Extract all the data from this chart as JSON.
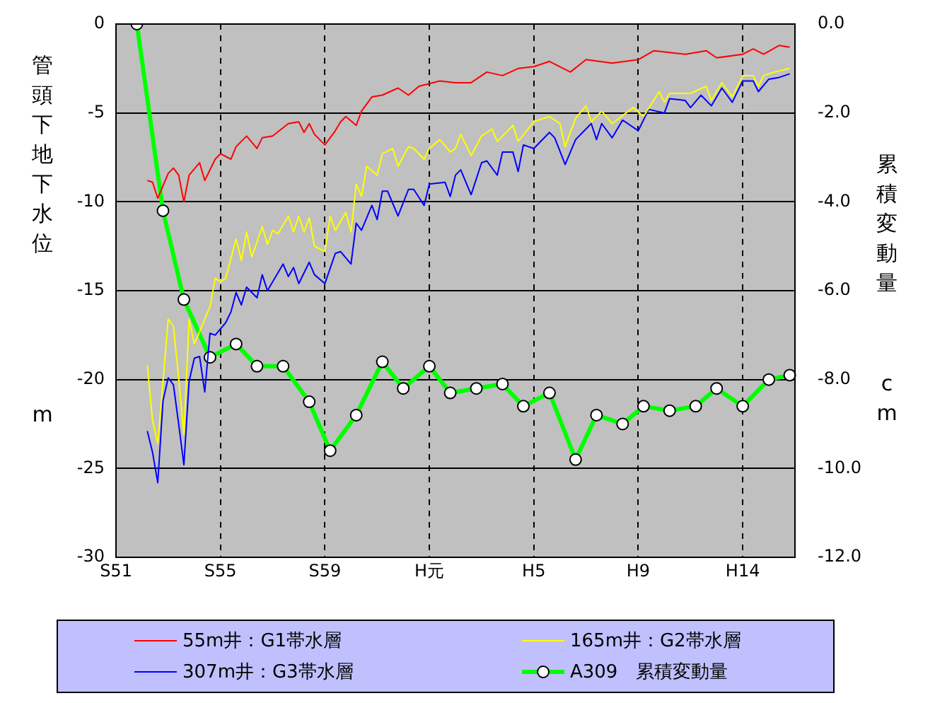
{
  "chart_data": {
    "type": "line",
    "ylabel": "管頭下地下水位 m",
    "y2label": "累積変動量 cm",
    "categories": [
      "S51",
      null,
      null,
      null,
      null,
      null,
      null,
      null,
      null,
      null,
      null,
      null,
      null,
      null,
      null,
      null,
      null,
      null,
      null,
      null,
      "S55",
      null,
      null,
      null,
      null,
      null,
      null,
      null,
      null,
      null,
      null,
      null,
      null,
      null,
      null,
      null,
      null,
      null,
      null,
      null,
      "S59",
      null,
      null,
      null,
      null,
      null,
      null,
      null,
      null,
      null,
      null,
      null,
      null,
      null,
      null,
      null,
      null,
      null,
      null,
      null,
      "H元",
      null,
      null,
      null,
      null,
      null,
      null,
      null,
      null,
      null,
      null,
      null,
      null,
      null,
      null,
      null,
      null,
      null,
      null,
      null,
      "H5",
      null,
      null,
      null,
      null,
      null,
      null,
      null,
      null,
      null,
      null,
      null,
      null,
      null,
      null,
      null,
      null,
      null,
      null,
      null,
      "H9",
      null,
      null,
      null,
      null,
      null,
      null,
      null,
      null,
      null,
      null,
      null,
      null,
      null,
      null,
      null,
      null,
      null,
      null,
      null,
      "H14",
      null,
      null,
      null,
      null,
      null,
      null,
      null,
      null,
      null,
      null
    ],
    "ylim": [
      -30,
      0
    ],
    "yticks": [
      -30,
      -25,
      -20,
      -15,
      -10,
      -5,
      0
    ],
    "y2lim": [
      -12,
      0
    ],
    "y2ticks": [
      {
        "value": -12,
        "label": "-12.0"
      },
      {
        "value": -10,
        "label": "-10.0"
      },
      {
        "value": -8,
        "label": "-8.0"
      },
      {
        "value": -6,
        "label": "-6.0"
      },
      {
        "value": -4,
        "label": "-4.0"
      },
      {
        "value": -2,
        "label": "-2.0"
      },
      {
        "value": 0,
        "label": "0.0"
      }
    ],
    "grid": true,
    "legend": "bottom",
    "series": [
      {
        "name": "55m井：G1帯水層",
        "color": "#ff0000",
        "marker": "none",
        "values": [
          null,
          null,
          null,
          null,
          null,
          null,
          -8.8,
          -8.9,
          -9.8,
          null,
          -8.4,
          -8.1,
          -8.5,
          -10.0,
          -8.5,
          null,
          -7.8,
          -8.8,
          null,
          -7.6,
          -7.3,
          null,
          -7.6,
          -6.9,
          null,
          -6.3,
          null,
          -7.0,
          -6.4,
          null,
          -6.3,
          null,
          null,
          -5.6,
          null,
          -5.5,
          -6.1,
          -5.6,
          -6.2,
          null,
          -6.8,
          null,
          -6.0,
          -5.5,
          -5.2,
          null,
          -5.7,
          -4.9,
          null,
          -4.1,
          null,
          -4.0,
          null,
          null,
          -3.6,
          null,
          -4.0,
          null,
          -3.5,
          null,
          null,
          null,
          -3.2,
          null,
          null,
          -3.3,
          null,
          null,
          -3.3,
          null,
          null,
          -2.7,
          null,
          null,
          -2.9,
          null,
          null,
          -2.5,
          null,
          null,
          -2.4,
          null,
          null,
          -2.1,
          null,
          null,
          null,
          -2.7,
          null,
          null,
          -2.0,
          null,
          null,
          null,
          null,
          -2.2,
          null,
          null,
          null,
          null,
          -2.0,
          null,
          null,
          -1.5,
          null,
          null,
          null,
          null,
          null,
          -1.7,
          null,
          null,
          null,
          -1.5,
          null,
          -1.9,
          null,
          null,
          null,
          null,
          -1.7,
          null,
          -1.4,
          null,
          -1.7,
          null,
          null,
          -1.2,
          null,
          -1.3,
          null
        ]
      },
      {
        "name": "165m井：G2帯水層",
        "color": "#ffff00",
        "marker": "none",
        "values": [
          null,
          null,
          null,
          null,
          null,
          null,
          -19.2,
          -22.3,
          -23.6,
          null,
          -16.6,
          -17.0,
          -19.9,
          -23.1,
          -16.6,
          -18.0,
          null,
          null,
          -15.9,
          -14.3,
          -14.5,
          -14.3,
          null,
          -12.1,
          -13.3,
          -11.7,
          -13.1,
          null,
          -11.4,
          -12.4,
          -11.6,
          -11.8,
          null,
          -10.8,
          -11.7,
          -10.8,
          -11.7,
          -10.9,
          -12.5,
          null,
          -12.8,
          -10.8,
          -11.6,
          null,
          -10.6,
          -11.7,
          -9.0,
          -9.7,
          -8.0,
          null,
          -8.5,
          -7.3,
          null,
          -7.0,
          -8.0,
          null,
          -6.9,
          -7.0,
          null,
          -7.6,
          -7.0,
          null,
          -6.5,
          null,
          -7.2,
          -7.0,
          -6.2,
          null,
          -7.4,
          null,
          -6.3,
          null,
          -5.9,
          -6.6,
          null,
          null,
          -5.7,
          -6.6,
          null,
          null,
          -5.5,
          null,
          null,
          -5.2,
          null,
          -5.6,
          -6.9,
          null,
          -5.3,
          null,
          -4.6,
          -5.5,
          null,
          -4.9,
          null,
          -5.6,
          null,
          null,
          null,
          -4.7,
          null,
          -5.2,
          null,
          null,
          -3.8,
          -4.4,
          -3.9,
          null,
          null,
          null,
          -3.9,
          null,
          null,
          -3.5,
          -4.3,
          null,
          -3.3,
          null,
          -4.1,
          null,
          -2.9,
          null,
          -2.9,
          -3.5,
          -2.9,
          null,
          -2.7,
          null,
          null,
          -2.5,
          null
        ]
      },
      {
        "name": "307m井：G3帯水層",
        "color": "#0000ff",
        "marker": "none",
        "values": [
          null,
          null,
          null,
          null,
          null,
          null,
          -22.9,
          -24.1,
          -25.8,
          -21.2,
          -19.9,
          -20.3,
          -22.5,
          -24.8,
          -20.1,
          -18.8,
          -18.7,
          -20.7,
          -17.4,
          -17.5,
          null,
          -16.8,
          -16.2,
          -15.1,
          -15.8,
          -14.8,
          null,
          -15.4,
          -14.1,
          -15.0,
          null,
          null,
          -13.5,
          -14.2,
          -13.7,
          -14.6,
          null,
          -13.4,
          -14.1,
          null,
          -14.6,
          null,
          -12.9,
          -12.8,
          null,
          -13.5,
          -11.2,
          -11.6,
          null,
          -10.2,
          -11.0,
          -9.4,
          -9.4,
          null,
          -10.8,
          null,
          -9.3,
          -9.3,
          null,
          -10.2,
          -9.0,
          null,
          null,
          -8.9,
          -9.7,
          -8.5,
          -8.2,
          null,
          -9.6,
          null,
          -7.8,
          -7.7,
          null,
          -8.5,
          -7.2,
          null,
          -7.2,
          -8.3,
          -6.8,
          null,
          -7.0,
          null,
          null,
          -6.1,
          -6.4,
          null,
          -7.9,
          null,
          -6.5,
          null,
          null,
          -5.6,
          -6.5,
          -5.6,
          null,
          -6.4,
          null,
          -5.4,
          null,
          null,
          -6.0,
          null,
          -4.8,
          null,
          null,
          -5.0,
          -4.2,
          null,
          null,
          -4.3,
          -4.7,
          null,
          -4.0,
          null,
          -4.6,
          null,
          -3.6,
          null,
          -4.4,
          null,
          -3.2,
          null,
          -3.2,
          -3.8,
          null,
          -3.1,
          null,
          -3.0,
          null,
          -2.8,
          null
        ]
      },
      {
        "name": "A309　累積変動量",
        "color": "#00ff00",
        "marker": "circle",
        "axis": "y2",
        "values": [
          null,
          null,
          null,
          null,
          0.0,
          null,
          null,
          null,
          null,
          -4.2,
          null,
          null,
          null,
          -6.2,
          null,
          null,
          null,
          null,
          -7.5,
          null,
          null,
          null,
          null,
          -7.2,
          null,
          null,
          null,
          -7.7,
          null,
          null,
          null,
          null,
          -7.7,
          null,
          null,
          null,
          null,
          -8.5,
          null,
          null,
          null,
          -9.6,
          null,
          null,
          null,
          null,
          -8.8,
          null,
          null,
          null,
          null,
          -7.6,
          null,
          null,
          null,
          -8.2,
          null,
          null,
          null,
          null,
          -7.7,
          null,
          null,
          null,
          -8.3,
          null,
          null,
          null,
          null,
          -8.2,
          null,
          null,
          null,
          null,
          -8.1,
          null,
          null,
          null,
          -8.6,
          null,
          null,
          null,
          null,
          -8.3,
          null,
          null,
          null,
          null,
          -9.8,
          null,
          null,
          null,
          -8.8,
          null,
          null,
          null,
          null,
          -9.0,
          null,
          null,
          null,
          -8.6,
          null,
          null,
          null,
          null,
          -8.7,
          null,
          null,
          null,
          null,
          -8.6,
          null,
          null,
          null,
          -8.2,
          null,
          null,
          null,
          null,
          -8.6,
          null,
          null,
          null,
          null,
          -8.0,
          null,
          null,
          null,
          -7.9,
          null
        ]
      }
    ]
  }
}
